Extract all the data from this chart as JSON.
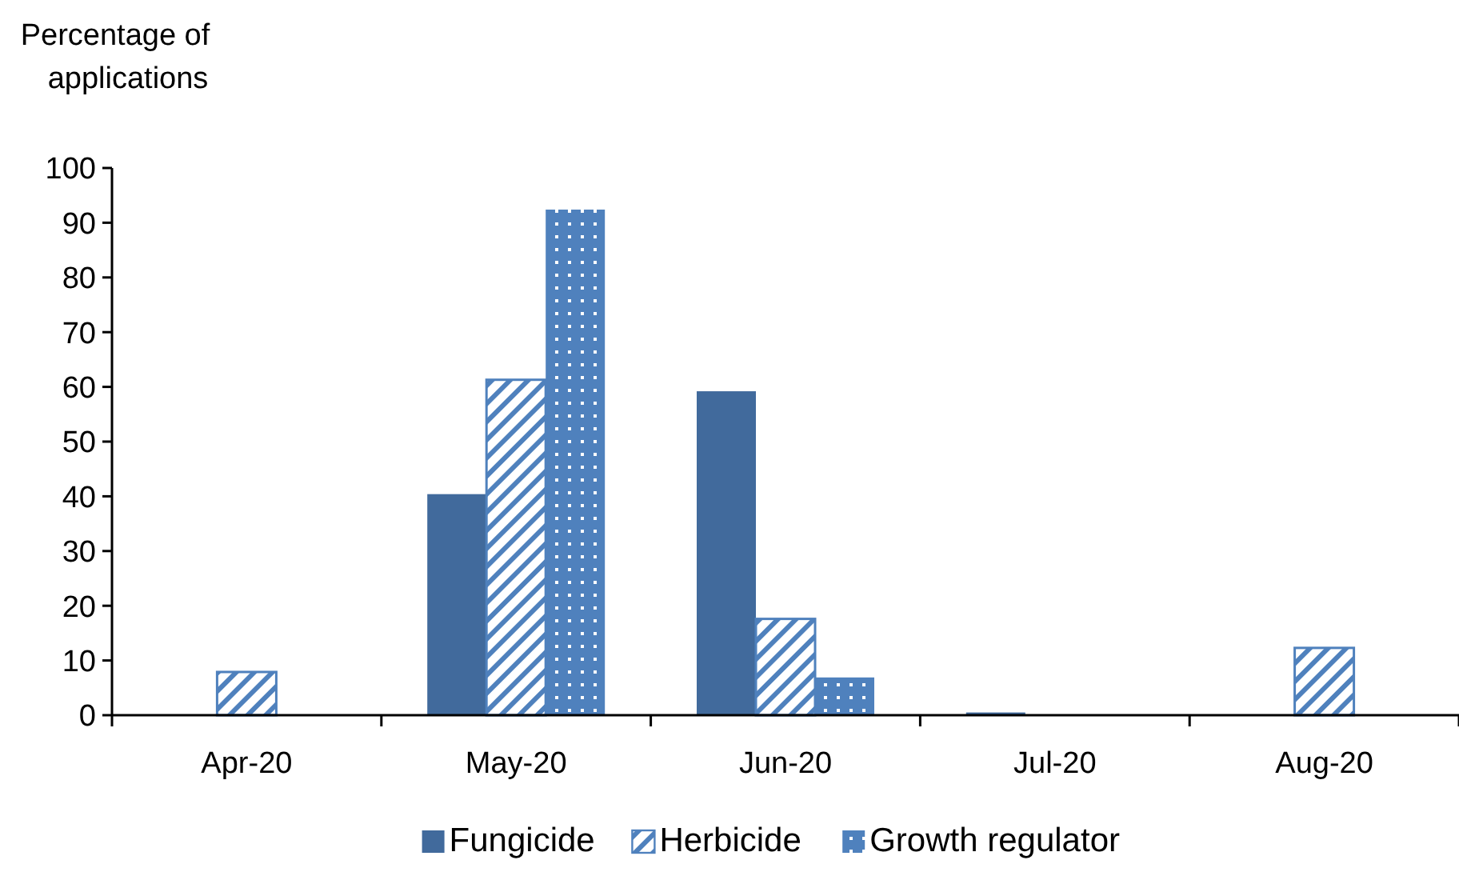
{
  "chart_data": {
    "type": "bar",
    "ylabel": "Percentage of applications",
    "categories": [
      "Apr-20",
      "May-20",
      "Jun-20",
      "Jul-20",
      "Aug-20"
    ],
    "series": [
      {
        "name": "Fungicide",
        "color": "#416a9c",
        "values": [
          null,
          40.4,
          59.2,
          0.5,
          null
        ]
      },
      {
        "name": "Herbicide",
        "color": "#4f81bd",
        "values": [
          7.9,
          61.3,
          17.6,
          null,
          12.3
        ]
      },
      {
        "name": "Growth regulator",
        "color": "#4f81bd",
        "values": [
          null,
          92.4,
          6.9,
          null,
          null
        ]
      }
    ],
    "ylim": [
      0,
      100
    ],
    "yticks": [
      0,
      10,
      20,
      30,
      40,
      50,
      60,
      70,
      80,
      90,
      100
    ],
    "grid": false,
    "legend": "bottom"
  }
}
